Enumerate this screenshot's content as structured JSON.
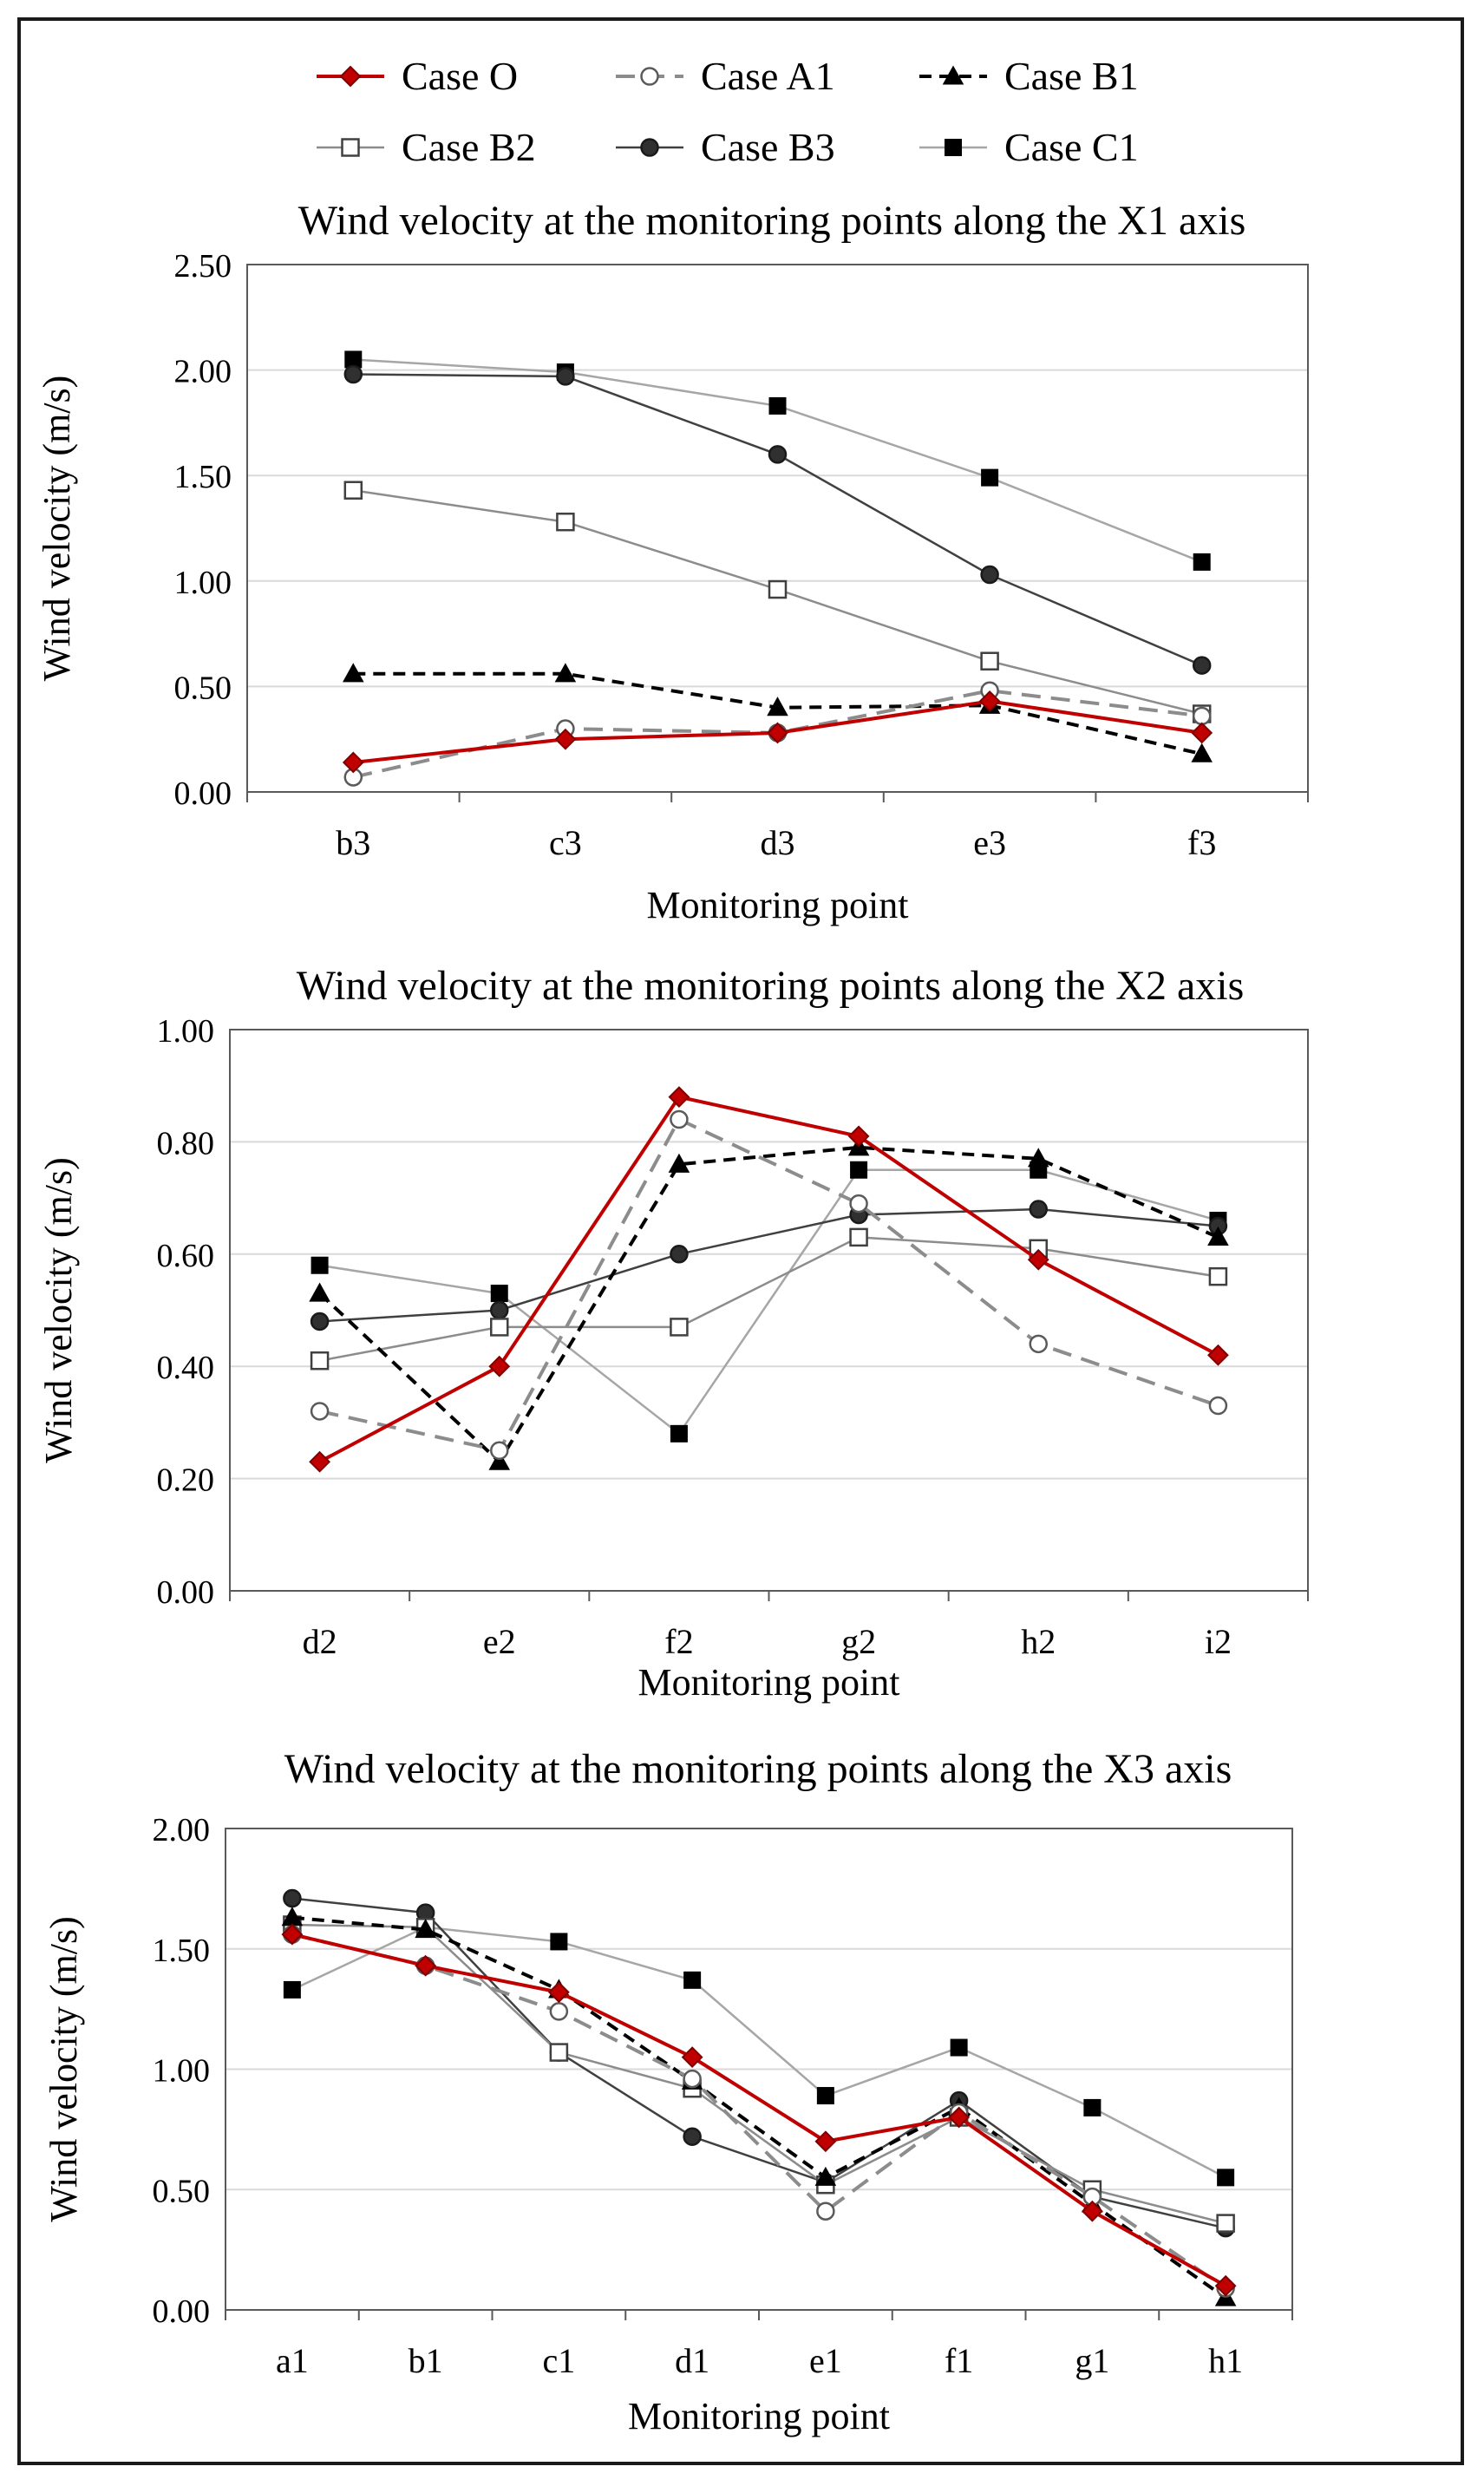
{
  "legend": {
    "items": [
      {
        "label": "Case O",
        "color": "#c00000",
        "dash": "solid",
        "marker": "diamond",
        "markerFill": "#c00000",
        "markerStroke": "#7f0000",
        "width": 4
      },
      {
        "label": "Case A1",
        "color": "#8c8c8c",
        "dash": "long-dash",
        "marker": "circle",
        "markerFill": "#ffffff",
        "markerStroke": "#5a5a5a",
        "width": 4
      },
      {
        "label": "Case B1",
        "color": "#000000",
        "dash": "dash",
        "marker": "triangle",
        "markerFill": "#000000",
        "markerStroke": "#000000",
        "width": 4
      },
      {
        "label": "Case B2",
        "color": "#8c8c8c",
        "dash": "solid",
        "marker": "square-open",
        "markerFill": "#ffffff",
        "markerStroke": "#404040",
        "width": 2.5
      },
      {
        "label": "Case B3",
        "color": "#404040",
        "dash": "solid",
        "marker": "circle-filled",
        "markerFill": "#303030",
        "markerStroke": "#1a1a1a",
        "width": 2.5
      },
      {
        "label": "Case C1",
        "color": "#a6a6a6",
        "dash": "solid",
        "marker": "square",
        "markerFill": "#000000",
        "markerStroke": "#000000",
        "width": 2.5
      }
    ]
  },
  "chart_data": [
    {
      "type": "line",
      "title": "Wind velocity at the monitoring points along the X1 axis",
      "xlabel": "Monitoring point",
      "ylabel": "Wind velocity (m/s)",
      "ylim": [
        0,
        2.5
      ],
      "yticks": [
        "0.00",
        "0.50",
        "1.00",
        "1.50",
        "2.00",
        "2.50"
      ],
      "grid": true,
      "legend": "top",
      "categories": [
        "b3",
        "c3",
        "d3",
        "e3",
        "f3"
      ],
      "series": [
        {
          "name": "Case O",
          "values": [
            0.14,
            0.25,
            0.28,
            0.43,
            0.28
          ]
        },
        {
          "name": "Case A1",
          "values": [
            0.07,
            0.3,
            0.28,
            0.48,
            0.36
          ]
        },
        {
          "name": "Case B1",
          "values": [
            0.56,
            0.56,
            0.4,
            0.41,
            0.18
          ]
        },
        {
          "name": "Case B2",
          "values": [
            1.43,
            1.28,
            0.96,
            0.62,
            0.37
          ]
        },
        {
          "name": "Case B3",
          "values": [
            1.98,
            1.97,
            1.6,
            1.03,
            0.6
          ]
        },
        {
          "name": "Case C1",
          "values": [
            2.05,
            1.99,
            1.83,
            1.49,
            1.09
          ]
        }
      ]
    },
    {
      "type": "line",
      "title": "Wind velocity at the monitoring points along the X2 axis",
      "xlabel": "Monitoring point",
      "ylabel": "Wind velocity (m/s)",
      "ylim": [
        0,
        1.0
      ],
      "yticks": [
        "0.00",
        "0.20",
        "0.40",
        "0.60",
        "0.80",
        "1.00"
      ],
      "grid": true,
      "categories": [
        "d2",
        "e2",
        "f2",
        "g2",
        "h2",
        "i2"
      ],
      "series": [
        {
          "name": "Case O",
          "values": [
            0.23,
            0.4,
            0.88,
            0.81,
            0.59,
            0.42
          ]
        },
        {
          "name": "Case A1",
          "values": [
            0.32,
            0.25,
            0.84,
            0.69,
            0.44,
            0.33
          ]
        },
        {
          "name": "Case B1",
          "values": [
            0.53,
            0.23,
            0.76,
            0.79,
            0.77,
            0.63
          ]
        },
        {
          "name": "Case B2",
          "values": [
            0.41,
            0.47,
            0.47,
            0.63,
            0.61,
            0.56
          ]
        },
        {
          "name": "Case B3",
          "values": [
            0.48,
            0.5,
            0.6,
            0.67,
            0.68,
            0.65
          ]
        },
        {
          "name": "Case C1",
          "values": [
            0.58,
            0.53,
            0.28,
            0.75,
            0.75,
            0.66
          ]
        }
      ]
    },
    {
      "type": "line",
      "title": "Wind velocity at the monitoring points along the X3 axis",
      "xlabel": "Monitoring point",
      "ylabel": "Wind velocity (m/s)",
      "ylim": [
        0,
        2.0
      ],
      "yticks": [
        "0.00",
        "0.50",
        "1.00",
        "1.50",
        "2.00"
      ],
      "grid": true,
      "categories": [
        "a1",
        "b1",
        "c1",
        "d1",
        "e1",
        "f1",
        "g1",
        "h1"
      ],
      "series": [
        {
          "name": "Case O",
          "values": [
            1.56,
            1.43,
            1.32,
            1.05,
            0.7,
            0.8,
            0.41,
            0.1
          ]
        },
        {
          "name": "Case A1",
          "values": [
            1.56,
            1.43,
            1.24,
            0.96,
            0.41,
            0.82,
            0.47,
            0.09
          ]
        },
        {
          "name": "Case B1",
          "values": [
            1.63,
            1.58,
            1.33,
            0.95,
            0.55,
            0.84,
            0.44,
            0.05
          ]
        },
        {
          "name": "Case B2",
          "values": [
            1.6,
            1.59,
            1.07,
            0.92,
            0.52,
            0.8,
            0.5,
            0.36
          ]
        },
        {
          "name": "Case B3",
          "values": [
            1.71,
            1.65,
            1.07,
            0.72,
            0.53,
            0.87,
            0.47,
            0.34
          ]
        },
        {
          "name": "Case C1",
          "values": [
            1.33,
            1.59,
            1.53,
            1.37,
            0.89,
            1.09,
            0.84,
            0.55
          ]
        }
      ]
    }
  ]
}
